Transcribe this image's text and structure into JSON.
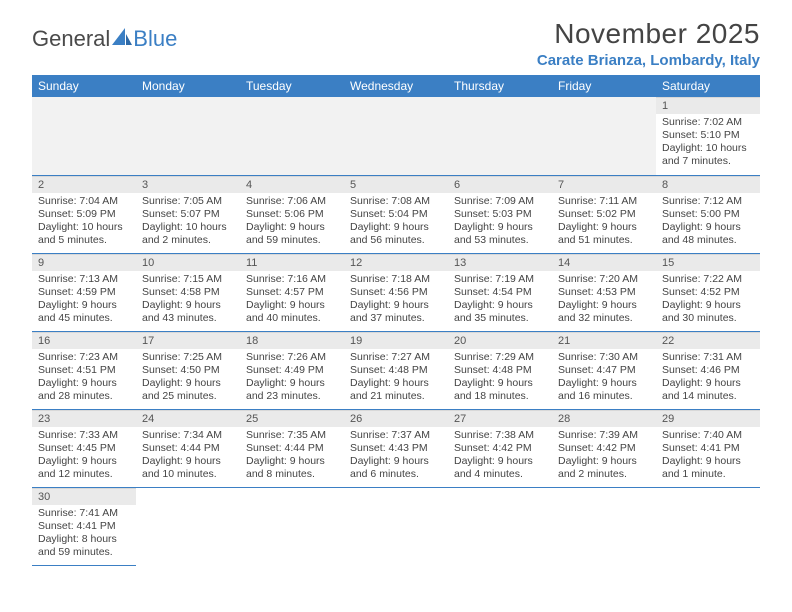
{
  "brand": {
    "part1": "General",
    "part2": "Blue"
  },
  "title": "November 2025",
  "location": "Carate Brianza, Lombardy, Italy",
  "colors": {
    "header_bg": "#3b7fc4",
    "header_fg": "#ffffff",
    "daynum_bg": "#eaeaea",
    "rule": "#3b7fc4",
    "text": "#444444",
    "location": "#3b7fc4"
  },
  "weekdays": [
    "Sunday",
    "Monday",
    "Tuesday",
    "Wednesday",
    "Thursday",
    "Friday",
    "Saturday"
  ],
  "first_weekday_index": 6,
  "days": [
    {
      "n": 1,
      "sunrise": "7:02 AM",
      "sunset": "5:10 PM",
      "daylight": "10 hours and 7 minutes."
    },
    {
      "n": 2,
      "sunrise": "7:04 AM",
      "sunset": "5:09 PM",
      "daylight": "10 hours and 5 minutes."
    },
    {
      "n": 3,
      "sunrise": "7:05 AM",
      "sunset": "5:07 PM",
      "daylight": "10 hours and 2 minutes."
    },
    {
      "n": 4,
      "sunrise": "7:06 AM",
      "sunset": "5:06 PM",
      "daylight": "9 hours and 59 minutes."
    },
    {
      "n": 5,
      "sunrise": "7:08 AM",
      "sunset": "5:04 PM",
      "daylight": "9 hours and 56 minutes."
    },
    {
      "n": 6,
      "sunrise": "7:09 AM",
      "sunset": "5:03 PM",
      "daylight": "9 hours and 53 minutes."
    },
    {
      "n": 7,
      "sunrise": "7:11 AM",
      "sunset": "5:02 PM",
      "daylight": "9 hours and 51 minutes."
    },
    {
      "n": 8,
      "sunrise": "7:12 AM",
      "sunset": "5:00 PM",
      "daylight": "9 hours and 48 minutes."
    },
    {
      "n": 9,
      "sunrise": "7:13 AM",
      "sunset": "4:59 PM",
      "daylight": "9 hours and 45 minutes."
    },
    {
      "n": 10,
      "sunrise": "7:15 AM",
      "sunset": "4:58 PM",
      "daylight": "9 hours and 43 minutes."
    },
    {
      "n": 11,
      "sunrise": "7:16 AM",
      "sunset": "4:57 PM",
      "daylight": "9 hours and 40 minutes."
    },
    {
      "n": 12,
      "sunrise": "7:18 AM",
      "sunset": "4:56 PM",
      "daylight": "9 hours and 37 minutes."
    },
    {
      "n": 13,
      "sunrise": "7:19 AM",
      "sunset": "4:54 PM",
      "daylight": "9 hours and 35 minutes."
    },
    {
      "n": 14,
      "sunrise": "7:20 AM",
      "sunset": "4:53 PM",
      "daylight": "9 hours and 32 minutes."
    },
    {
      "n": 15,
      "sunrise": "7:22 AM",
      "sunset": "4:52 PM",
      "daylight": "9 hours and 30 minutes."
    },
    {
      "n": 16,
      "sunrise": "7:23 AM",
      "sunset": "4:51 PM",
      "daylight": "9 hours and 28 minutes."
    },
    {
      "n": 17,
      "sunrise": "7:25 AM",
      "sunset": "4:50 PM",
      "daylight": "9 hours and 25 minutes."
    },
    {
      "n": 18,
      "sunrise": "7:26 AM",
      "sunset": "4:49 PM",
      "daylight": "9 hours and 23 minutes."
    },
    {
      "n": 19,
      "sunrise": "7:27 AM",
      "sunset": "4:48 PM",
      "daylight": "9 hours and 21 minutes."
    },
    {
      "n": 20,
      "sunrise": "7:29 AM",
      "sunset": "4:48 PM",
      "daylight": "9 hours and 18 minutes."
    },
    {
      "n": 21,
      "sunrise": "7:30 AM",
      "sunset": "4:47 PM",
      "daylight": "9 hours and 16 minutes."
    },
    {
      "n": 22,
      "sunrise": "7:31 AM",
      "sunset": "4:46 PM",
      "daylight": "9 hours and 14 minutes."
    },
    {
      "n": 23,
      "sunrise": "7:33 AM",
      "sunset": "4:45 PM",
      "daylight": "9 hours and 12 minutes."
    },
    {
      "n": 24,
      "sunrise": "7:34 AM",
      "sunset": "4:44 PM",
      "daylight": "9 hours and 10 minutes."
    },
    {
      "n": 25,
      "sunrise": "7:35 AM",
      "sunset": "4:44 PM",
      "daylight": "9 hours and 8 minutes."
    },
    {
      "n": 26,
      "sunrise": "7:37 AM",
      "sunset": "4:43 PM",
      "daylight": "9 hours and 6 minutes."
    },
    {
      "n": 27,
      "sunrise": "7:38 AM",
      "sunset": "4:42 PM",
      "daylight": "9 hours and 4 minutes."
    },
    {
      "n": 28,
      "sunrise": "7:39 AM",
      "sunset": "4:42 PM",
      "daylight": "9 hours and 2 minutes."
    },
    {
      "n": 29,
      "sunrise": "7:40 AM",
      "sunset": "4:41 PM",
      "daylight": "9 hours and 1 minute."
    },
    {
      "n": 30,
      "sunrise": "7:41 AM",
      "sunset": "4:41 PM",
      "daylight": "8 hours and 59 minutes."
    }
  ],
  "labels": {
    "sunrise": "Sunrise:",
    "sunset": "Sunset:",
    "daylight": "Daylight:"
  }
}
